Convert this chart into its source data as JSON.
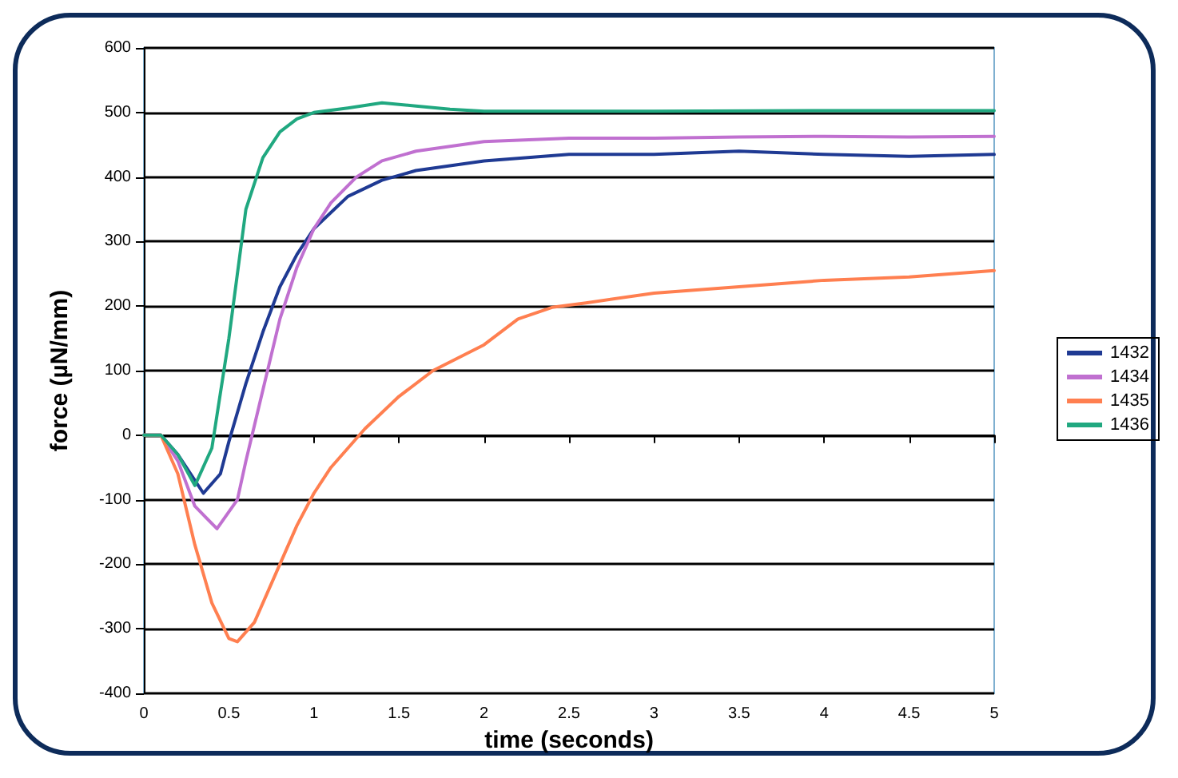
{
  "chart_data": {
    "type": "line",
    "xlabel": "time (seconds)",
    "ylabel": "force (µN/mm)",
    "xlim": [
      0,
      5
    ],
    "ylim": [
      -400,
      600
    ],
    "xticks": [
      0,
      0.5,
      1,
      1.5,
      2,
      2.5,
      3,
      3.5,
      4,
      4.5,
      5
    ],
    "yticks": [
      -400,
      -300,
      -200,
      -100,
      0,
      100,
      200,
      300,
      400,
      500,
      600
    ],
    "grid": "y",
    "legend": "right",
    "marker": "none",
    "line_style": "solid",
    "series": [
      {
        "name": "1432",
        "color": "#1f3a93",
        "x": [
          0,
          0.1,
          0.2,
          0.35,
          0.45,
          0.5,
          0.6,
          0.7,
          0.8,
          0.9,
          1.0,
          1.2,
          1.4,
          1.6,
          2,
          2.5,
          3,
          3.5,
          4,
          4.5,
          5
        ],
        "values": [
          0,
          0,
          -30,
          -90,
          -60,
          -10,
          80,
          160,
          230,
          280,
          320,
          370,
          395,
          410,
          425,
          435,
          435,
          440,
          435,
          432,
          435
        ]
      },
      {
        "name": "1434",
        "color": "#c070d0",
        "x": [
          0,
          0.1,
          0.2,
          0.3,
          0.43,
          0.55,
          0.6,
          0.7,
          0.8,
          0.9,
          1.0,
          1.1,
          1.25,
          1.4,
          1.6,
          2,
          2.5,
          3,
          3.5,
          4,
          4.5,
          5
        ],
        "values": [
          0,
          0,
          -40,
          -110,
          -145,
          -100,
          -40,
          70,
          180,
          260,
          320,
          360,
          400,
          425,
          440,
          455,
          460,
          460,
          462,
          463,
          462,
          463
        ]
      },
      {
        "name": "1435",
        "color": "#ff7f50",
        "x": [
          0,
          0.1,
          0.2,
          0.3,
          0.4,
          0.5,
          0.55,
          0.65,
          0.8,
          0.9,
          1.0,
          1.1,
          1.3,
          1.5,
          1.7,
          2.0,
          2.2,
          2.4,
          2.6,
          3,
          3.5,
          4,
          4.5,
          5
        ],
        "values": [
          0,
          0,
          -60,
          -170,
          -260,
          -315,
          -320,
          -290,
          -200,
          -140,
          -90,
          -50,
          10,
          60,
          100,
          140,
          180,
          198,
          205,
          220,
          230,
          240,
          245,
          255
        ]
      },
      {
        "name": "1436",
        "color": "#20a880",
        "x": [
          0,
          0.1,
          0.2,
          0.3,
          0.4,
          0.5,
          0.6,
          0.7,
          0.8,
          0.9,
          1.0,
          1.2,
          1.4,
          1.6,
          1.8,
          2,
          3,
          4,
          5
        ],
        "values": [
          0,
          0,
          -30,
          -78,
          -20,
          150,
          350,
          430,
          470,
          490,
          500,
          507,
          515,
          510,
          505,
          502,
          502,
          503,
          503
        ]
      }
    ]
  }
}
